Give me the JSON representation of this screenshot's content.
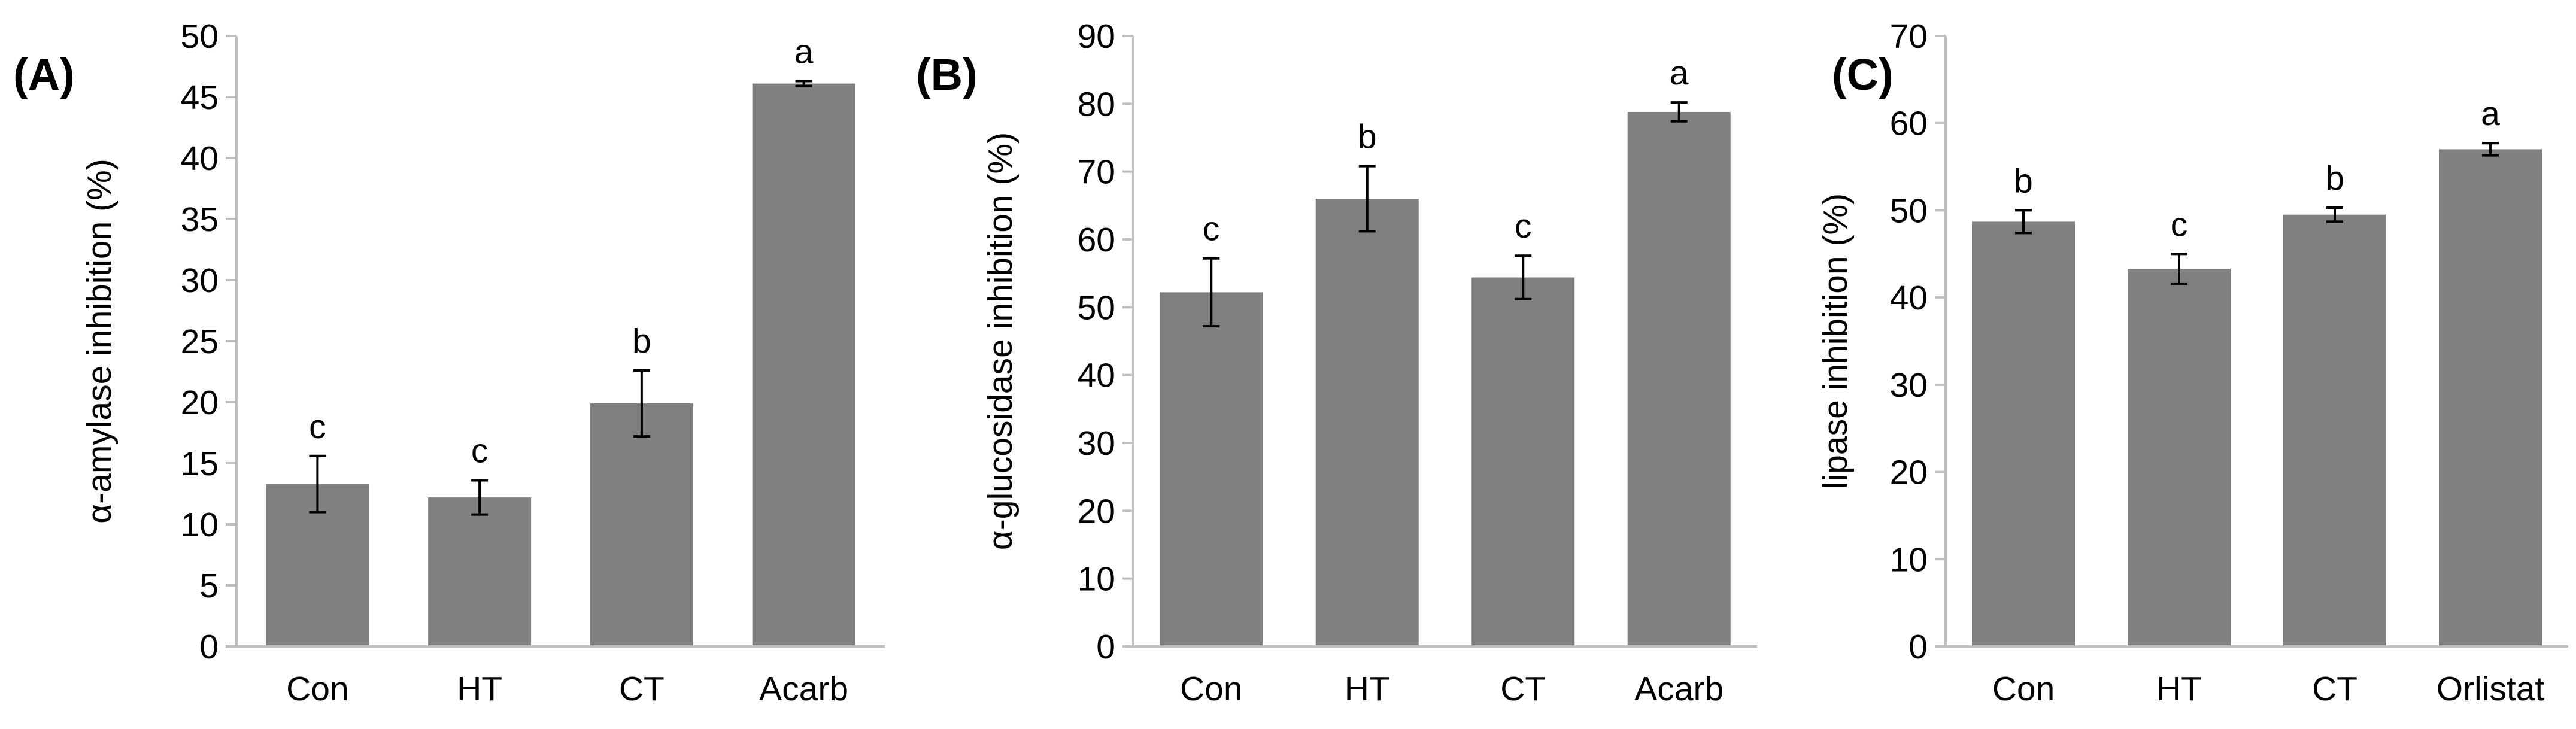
{
  "chart_data": [
    {
      "type": "bar",
      "panel_label": "(A)",
      "ylabel": "α-amylase inhibition (%)",
      "xlabel": "",
      "categories": [
        "Con",
        "HT",
        "CT",
        "Acarb"
      ],
      "values": [
        13.3,
        12.2,
        19.9,
        46.1
      ],
      "errors": [
        2.3,
        1.4,
        2.7,
        0.2
      ],
      "significance": [
        "c",
        "c",
        "b",
        "a"
      ],
      "ylim": [
        0,
        50
      ],
      "yticks": [
        0,
        5,
        10,
        15,
        20,
        25,
        30,
        35,
        40,
        45,
        50
      ],
      "bar_color": "#808080",
      "grid": false
    },
    {
      "type": "bar",
      "panel_label": "(B)",
      "ylabel": "α-glucosidase inhibition (%)",
      "xlabel": "",
      "categories": [
        "Con",
        "HT",
        "CT",
        "Acarb"
      ],
      "values": [
        52.2,
        66.0,
        54.4,
        78.8
      ],
      "errors": [
        5.0,
        4.8,
        3.2,
        1.4
      ],
      "significance": [
        "c",
        "b",
        "c",
        "a"
      ],
      "ylim": [
        0,
        90
      ],
      "yticks": [
        0,
        10,
        20,
        30,
        40,
        50,
        60,
        70,
        80,
        90
      ],
      "bar_color": "#808080",
      "grid": false
    },
    {
      "type": "bar",
      "panel_label": "(C)",
      "ylabel": "lipase inhibition (%)",
      "xlabel": "",
      "categories": [
        "Con",
        "HT",
        "CT",
        "Orlistat"
      ],
      "values": [
        48.7,
        43.3,
        49.5,
        57.0
      ],
      "errors": [
        1.3,
        1.7,
        0.8,
        0.7
      ],
      "significance": [
        "b",
        "c",
        "b",
        "a"
      ],
      "ylim": [
        0,
        70
      ],
      "yticks": [
        0,
        10,
        20,
        30,
        40,
        50,
        60,
        70
      ],
      "bar_color": "#808080",
      "grid": false
    }
  ]
}
